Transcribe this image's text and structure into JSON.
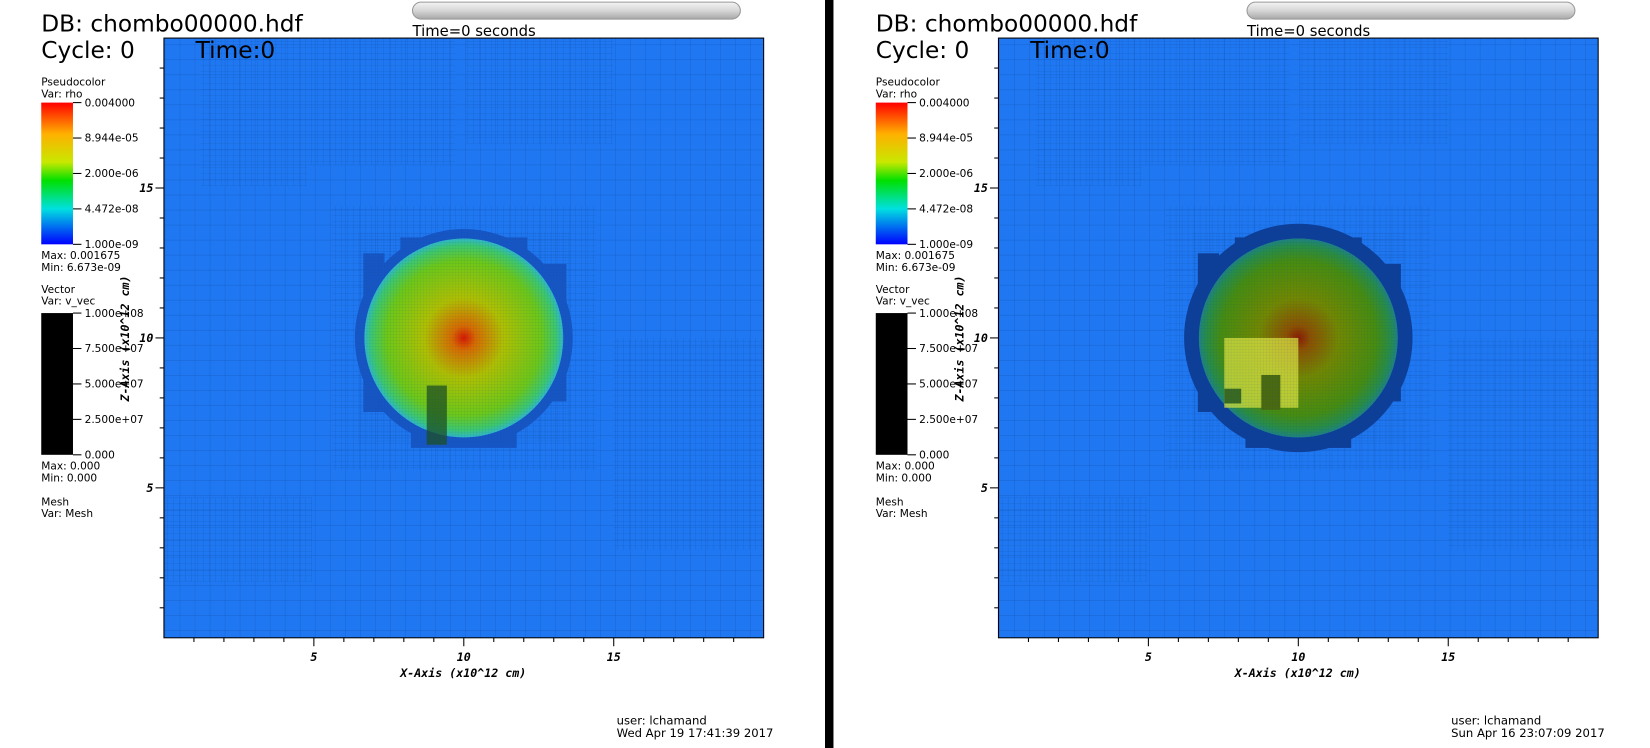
{
  "panels": [
    {
      "db": "DB: chombo00000.hdf",
      "cycle": "Cycle: 0",
      "time": "Time:0",
      "time_label": "Time=0 seconds",
      "pseudocolor": {
        "title": "Pseudocolor",
        "var": "Var: rho",
        "labels": [
          "0.004000",
          "8.944e-05",
          "2.000e-06",
          "4.472e-08",
          "1.000e-09"
        ],
        "max": "Max:  0.001675",
        "min": "Min:  6.673e-09"
      },
      "vector": {
        "title": "Vector",
        "var": "Var: v_vec",
        "labels": [
          "1.000e+08",
          "7.500e+07",
          "5.000e+07",
          "2.500e+07",
          "0.000"
        ],
        "max": "Max:  0.000",
        "min": "Min:  0.000"
      },
      "mesh": {
        "title": "Mesh",
        "var": "Var: Mesh"
      },
      "x_axis": {
        "title": "X-Axis (x10^12 cm)",
        "ticks": [
          "5",
          "10",
          "15"
        ]
      },
      "y_axis": {
        "title": "Z-Axis (x10^12 cm)",
        "ticks": [
          "5",
          "10",
          "15"
        ]
      },
      "user": "user: lchamand",
      "date": "Wed Apr 19 17:41:39 2017"
    },
    {
      "db": "DB: chombo00000.hdf",
      "cycle": "Cycle: 0",
      "time": "Time:0",
      "time_label": "Time=0 seconds",
      "pseudocolor": {
        "title": "Pseudocolor",
        "var": "Var: rho",
        "labels": [
          "0.004000",
          "8.944e-05",
          "2.000e-06",
          "4.472e-08",
          "1.000e-09"
        ],
        "max": "Max:  0.001675",
        "min": "Min:  6.673e-09"
      },
      "vector": {
        "title": "Vector",
        "var": "Var: v_vec",
        "labels": [
          "1.000e+08",
          "7.500e+07",
          "5.000e+07",
          "2.500e+07",
          "0.000"
        ],
        "max": "Max:  0.000",
        "min": "Min:  0.000"
      },
      "mesh": {
        "title": "Mesh",
        "var": "Var: Mesh"
      },
      "x_axis": {
        "title": "X-Axis (x10^12 cm)",
        "ticks": [
          "5",
          "10",
          "15"
        ]
      },
      "y_axis": {
        "title": "Z-Axis (x10^12 cm)",
        "ticks": [
          "5",
          "10",
          "15"
        ]
      },
      "user": "user: lchamand",
      "date": "Sun Apr 16 23:07:09 2017"
    }
  ]
}
